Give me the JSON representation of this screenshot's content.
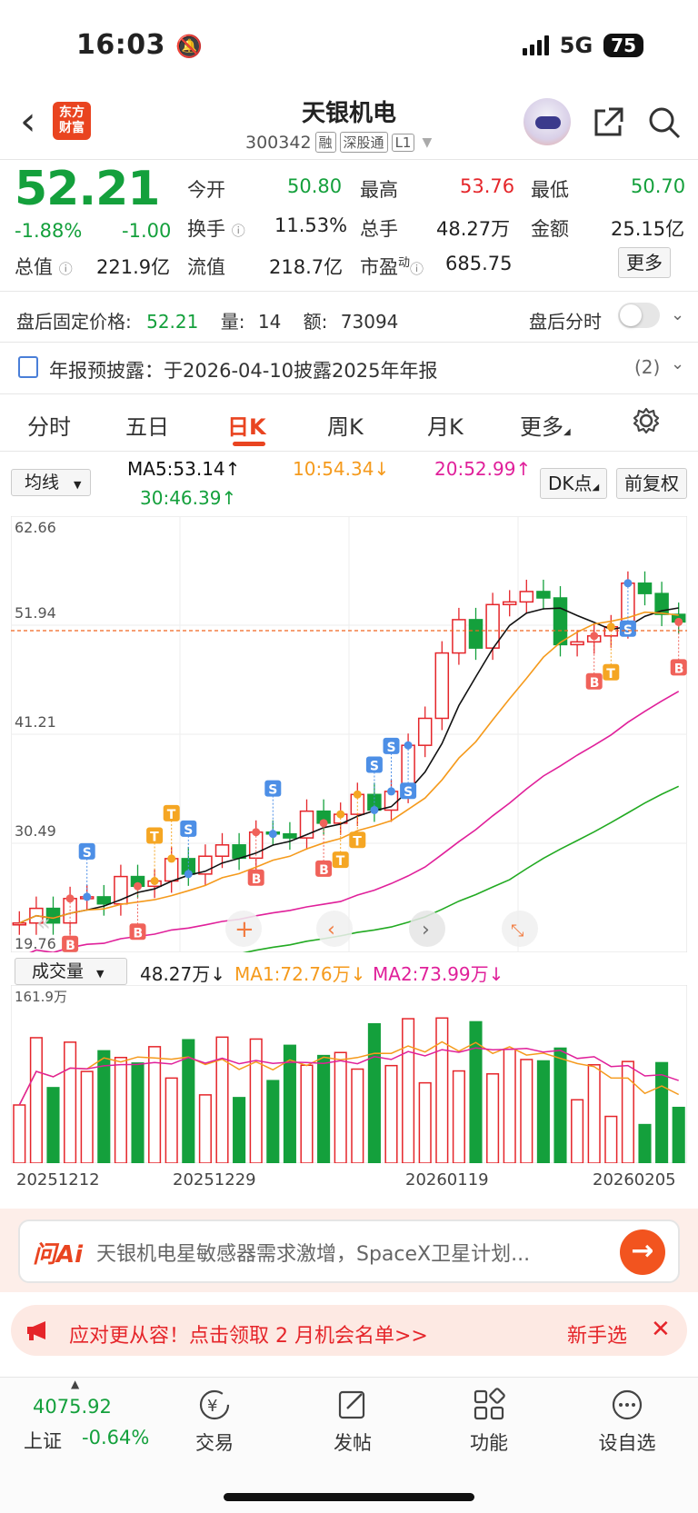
{
  "status": {
    "time": "16:03",
    "network": "5G",
    "battery": "75"
  },
  "header": {
    "logo": "东方财富",
    "name": "天银机电",
    "code": "300342",
    "tags": [
      "融",
      "深股通",
      "L1"
    ]
  },
  "quote": {
    "price": "52.21",
    "change_pct": "-1.88%",
    "change": "-1.00",
    "open_label": "今开",
    "open": "50.80",
    "high_label": "最高",
    "high": "53.76",
    "low_label": "最低",
    "low": "50.70",
    "turnover_label": "换手",
    "turnover": "11.53%",
    "volume_label": "总手",
    "volume": "48.27万",
    "amount_label": "金额",
    "amount": "25.15亿",
    "mktcap_label": "总值",
    "mktcap": "221.9亿",
    "float_label": "流值",
    "float": "218.7亿",
    "pe_label": "市盈",
    "pe_sup": "动",
    "pe": "685.75",
    "more": "更多"
  },
  "after_hours": {
    "label": "盘后固定价格:",
    "price": "52.21",
    "qty_label": "量:",
    "qty": "14",
    "amt_label": "额:",
    "amt": "73094",
    "toggle_label": "盘后分时"
  },
  "notice": {
    "text": "年报预披露：于2026-04-10披露2025年年报",
    "count": "(2)"
  },
  "tabs": [
    "分时",
    "五日",
    "日K",
    "周K",
    "月K",
    "更多"
  ],
  "chart": {
    "ma_select": "均线",
    "ma5": "MA5:53.14",
    "ma10": "10:54.34",
    "ma20": "20:52.99",
    "ma30": "30:46.39",
    "dk_btn": "DK点",
    "adjust_btn": "前复权",
    "y_labels": [
      "62.66",
      "51.94",
      "41.21",
      "30.49",
      "19.76"
    ],
    "vol_select": "成交量",
    "vol_value": "48.27万",
    "vol_ma1": "MA1:72.76万",
    "vol_ma2": "MA2:73.99万",
    "vol_max": "161.9万",
    "dates": [
      "20251212",
      "20251229",
      "20260119",
      "20260205"
    ],
    "colors": {
      "up": "#e5252a",
      "down": "#14a03c",
      "ma5": "#111111",
      "ma10": "#f59a1c",
      "ma20": "#e0209a",
      "ma30": "#22aa22"
    }
  },
  "ai": {
    "logo": "问Ai",
    "text": "天银机电星敏感器需求激增，SpaceX卫星计划..."
  },
  "promo": {
    "text": "应对更从容！点击领取 2 月机会名单>>",
    "right": "新手选"
  },
  "nav": {
    "index_value": "4075.92",
    "index_name": "上证",
    "index_change": "-0.64%",
    "items": [
      "交易",
      "发帖",
      "功能",
      "设自选"
    ]
  }
}
